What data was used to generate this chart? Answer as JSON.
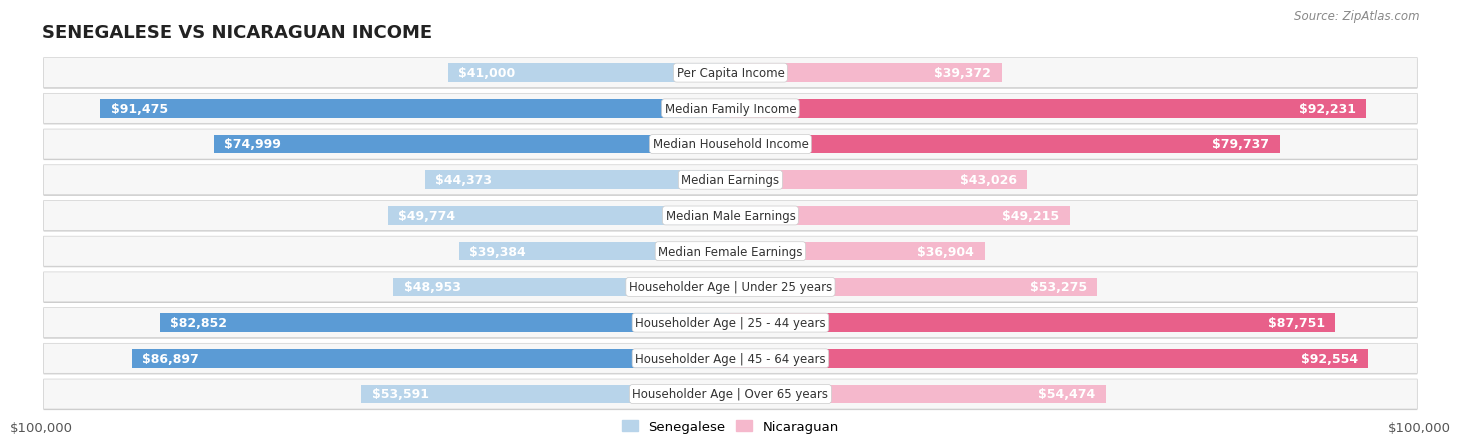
{
  "title": "SENEGALESE VS NICARAGUAN INCOME",
  "source": "Source: ZipAtlas.com",
  "categories": [
    "Per Capita Income",
    "Median Family Income",
    "Median Household Income",
    "Median Earnings",
    "Median Male Earnings",
    "Median Female Earnings",
    "Householder Age | Under 25 years",
    "Householder Age | 25 - 44 years",
    "Householder Age | 45 - 64 years",
    "Householder Age | Over 65 years"
  ],
  "senegalese": [
    41000,
    91475,
    74999,
    44373,
    49774,
    39384,
    48953,
    82852,
    86897,
    53591
  ],
  "nicaraguan": [
    39372,
    92231,
    79737,
    43026,
    49215,
    36904,
    53275,
    87751,
    92554,
    54474
  ],
  "senegalese_labels": [
    "$41,000",
    "$91,475",
    "$74,999",
    "$44,373",
    "$49,774",
    "$39,384",
    "$48,953",
    "$82,852",
    "$86,897",
    "$53,591"
  ],
  "nicaraguan_labels": [
    "$39,372",
    "$92,231",
    "$79,737",
    "$43,026",
    "$49,215",
    "$36,904",
    "$53,275",
    "$87,751",
    "$92,554",
    "$54,474"
  ],
  "max_value": 100000,
  "color_senegalese_light": "#b8d4ea",
  "color_senegalese_dark": "#5b9bd5",
  "color_nicaraguan_light": "#f5b8cc",
  "color_nicaraguan_dark": "#e8608a",
  "bar_height": 0.52,
  "label_fontsize": 9,
  "category_fontsize": 8.5,
  "title_fontsize": 13,
  "axis_label": "$100,000",
  "inside_threshold": 30000,
  "row_bg": "#f2f2f2",
  "row_border": "#d8d8d8"
}
